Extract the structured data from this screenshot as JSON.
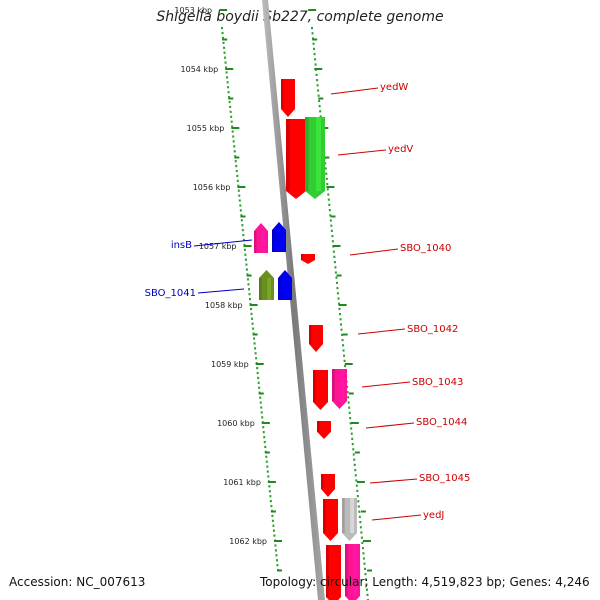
{
  "title": "Shigella boydii Sb227, complete genome",
  "footer": {
    "accession": "Accession: NC_007613",
    "stats": "Topology: circular; Length: 4,519,823 bp; Genes: 4,246"
  },
  "colors": {
    "background": "#ffffff",
    "backbone": "#8a8a8a",
    "ruler_dots": "#2e9e2e",
    "label_forward": "#cc0000",
    "label_reverse": "#0000bb"
  },
  "ruler": {
    "labels": [
      "1053 kbp",
      "1054 kbp",
      "1055 kbp",
      "1056 kbp",
      "1057 kbp",
      "1058 kbp",
      "1059 kbp",
      "1060 kbp",
      "1061 kbp",
      "1062 kbp"
    ]
  },
  "genes": [
    {
      "name": "yedW",
      "strand": "forward",
      "color": "#ff0000",
      "label_color": "#cc0000"
    },
    {
      "name": "yedV",
      "strand": "forward",
      "color": "#ff0000",
      "label_color": "#cc0000"
    },
    {
      "name": "yedV-partner",
      "strand": "forward",
      "color": "#33cc33",
      "label_color": "#cc0000"
    },
    {
      "name": "SBO_1040",
      "strand": "forward",
      "color": "#ff0000",
      "label_color": "#cc0000"
    },
    {
      "name": "insB",
      "strand": "reverse",
      "color": "#ff1493",
      "label_color": "#0000bb"
    },
    {
      "name": "insB-partner",
      "strand": "reverse",
      "color": "#0000ee",
      "label_color": "#0000bb"
    },
    {
      "name": "SBO_1041",
      "strand": "reverse",
      "color": "#6b8e23",
      "label_color": "#0000bb"
    },
    {
      "name": "SBO_1041-partner",
      "strand": "reverse",
      "color": "#0000ee",
      "label_color": "#0000bb"
    },
    {
      "name": "SBO_1042",
      "strand": "forward",
      "color": "#ff0000",
      "label_color": "#cc0000"
    },
    {
      "name": "SBO_1043",
      "strand": "forward",
      "color": "#ff0000",
      "label_color": "#cc0000"
    },
    {
      "name": "SBO_1043-partner",
      "strand": "forward",
      "color": "#ff1493",
      "label_color": "#cc0000"
    },
    {
      "name": "SBO_1044",
      "strand": "forward",
      "color": "#ff0000",
      "label_color": "#cc0000"
    },
    {
      "name": "SBO_1045",
      "strand": "forward",
      "color": "#ff0000",
      "label_color": "#cc0000"
    },
    {
      "name": "yedJ",
      "strand": "forward",
      "color": "#ff0000",
      "label_color": "#cc0000"
    },
    {
      "name": "yedJ-partner",
      "strand": "forward",
      "color": "#bbbbbb",
      "label_color": "#cc0000"
    },
    {
      "name": "bottom-1",
      "strand": "forward",
      "color": "#ff0000",
      "label_color": "#cc0000"
    },
    {
      "name": "bottom-2",
      "strand": "forward",
      "color": "#ff1493",
      "label_color": "#cc0000"
    }
  ],
  "gene_labels": [
    {
      "text": "yedW",
      "color": "#cc0000"
    },
    {
      "text": "yedV",
      "color": "#cc0000"
    },
    {
      "text": "SBO_1040",
      "color": "#cc0000"
    },
    {
      "text": "insB",
      "color": "#0000bb"
    },
    {
      "text": "SBO_1041",
      "color": "#0000bb"
    },
    {
      "text": "SBO_1042",
      "color": "#cc0000"
    },
    {
      "text": "SBO_1043",
      "color": "#cc0000"
    },
    {
      "text": "SBO_1044",
      "color": "#cc0000"
    },
    {
      "text": "SBO_1045",
      "color": "#cc0000"
    },
    {
      "text": "yedJ",
      "color": "#cc0000"
    }
  ]
}
